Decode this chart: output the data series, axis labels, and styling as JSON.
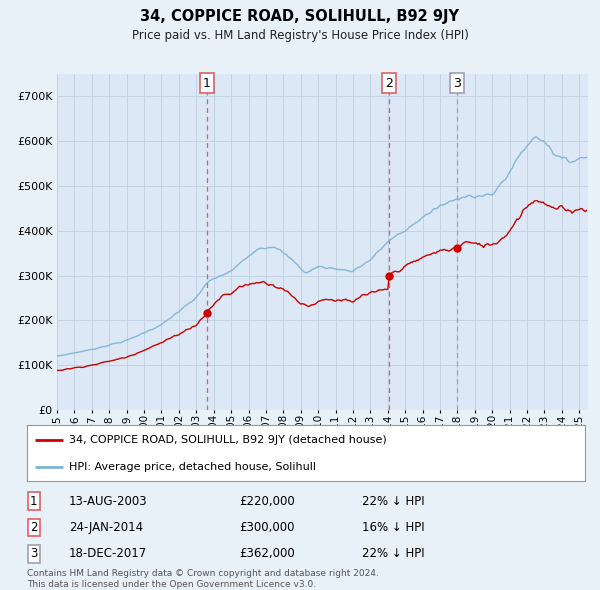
{
  "title": "34, COPPICE ROAD, SOLIHULL, B92 9JY",
  "subtitle": "Price paid vs. HM Land Registry's House Price Index (HPI)",
  "background_color": "#e8f0f8",
  "plot_bg_color": "#dce8f5",
  "legend_label_red": "34, COPPICE ROAD, SOLIHULL, B92 9JY (detached house)",
  "legend_label_blue": "HPI: Average price, detached house, Solihull",
  "footer": "Contains HM Land Registry data © Crown copyright and database right 2024.\nThis data is licensed under the Open Government Licence v3.0.",
  "transactions": [
    {
      "num": 1,
      "date": "13-AUG-2003",
      "price": 220000,
      "pct": "22%",
      "year_x": 2003.62,
      "vline_style": "red_dashed"
    },
    {
      "num": 2,
      "date": "24-JAN-2014",
      "price": 300000,
      "pct": "16%",
      "year_x": 2014.07,
      "vline_style": "red_dashed"
    },
    {
      "num": 3,
      "date": "18-DEC-2017",
      "price": 362000,
      "pct": "22%",
      "year_x": 2017.96,
      "vline_style": "gray_dashed"
    }
  ],
  "ylim": [
    0,
    750000
  ],
  "yticks": [
    0,
    100000,
    200000,
    300000,
    400000,
    500000,
    600000,
    700000
  ],
  "hpi_color": "#7ab3d4",
  "price_color": "#cc0000",
  "grid_color": "#c0d0e0",
  "vline_color_red": "#e06060",
  "vline_color_gray": "#a0a0b0",
  "xlim_start": 1995,
  "xlim_end": 2025.5
}
